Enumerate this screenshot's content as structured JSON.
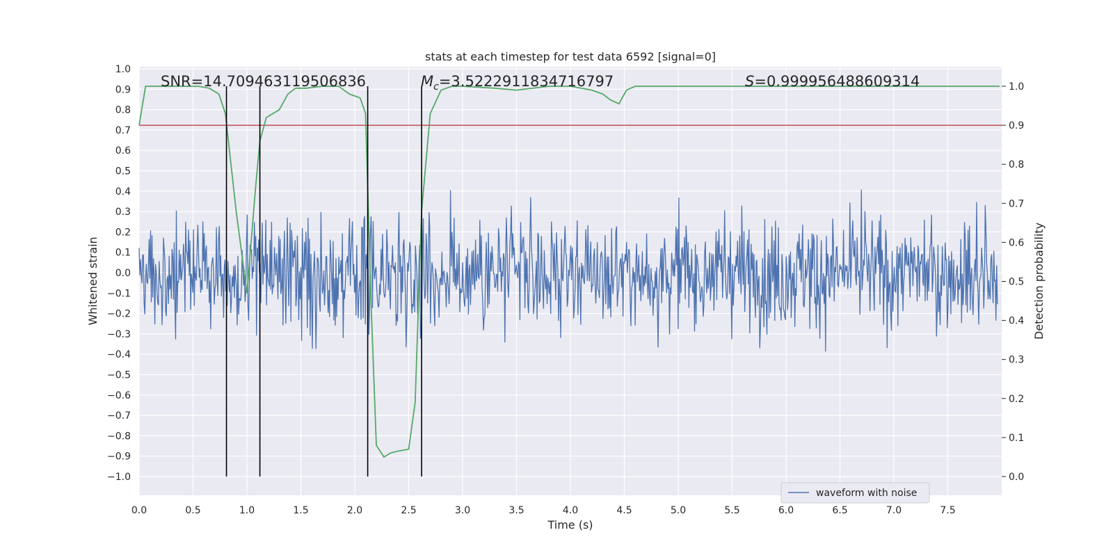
{
  "chart_data": {
    "type": "line",
    "title": "stats at each timestep for test data 6592 [signal=0]",
    "xlabel": "Time (s)",
    "ylabel": "Whitened strain",
    "y2label": "Detection probability",
    "xlim": [
      0.0,
      8.0
    ],
    "ylim": [
      -1.0,
      1.0
    ],
    "y2lim": [
      0.0,
      1.0
    ],
    "xticks": [
      "0.0",
      "0.5",
      "1.0",
      "1.5",
      "2.0",
      "2.5",
      "3.0",
      "3.5",
      "4.0",
      "4.5",
      "5.0",
      "5.5",
      "6.0",
      "6.5",
      "7.0",
      "7.5"
    ],
    "yticks": [
      "1.0",
      "0.9",
      "0.8",
      "0.7",
      "0.6",
      "0.5",
      "0.4",
      "0.3",
      "0.2",
      "0.1",
      "0.0",
      "−0.1",
      "−0.2",
      "−0.3",
      "−0.4",
      "−0.5",
      "−0.6",
      "−0.7",
      "−0.8",
      "−0.9",
      "−1.0"
    ],
    "y2ticks": [
      "1.0",
      "0.9",
      "0.8",
      "0.7",
      "0.6",
      "0.5",
      "0.4",
      "0.3",
      "0.2",
      "0.1",
      "0.0"
    ],
    "annotations": {
      "snr": "SNR=14.709463119506836",
      "mc_prefix": "M",
      "mc_sub": "c",
      "mc_value": "=3.5222911834716797",
      "s_prefix": "S",
      "s_value": "=0.999956488609314"
    },
    "threshold": {
      "y2": 0.9,
      "color": "#c44e52"
    },
    "vertical_lines_x": [
      0.81,
      1.12,
      2.12,
      2.62
    ],
    "legend": {
      "label": "waveform with noise",
      "placement": "lower-right"
    },
    "waveform": {
      "name": "waveform with noise",
      "color": "#4c72b0",
      "typical_amplitude": 0.42,
      "samples": 1200
    },
    "probability": {
      "color": "#55a868",
      "x": [
        0.0,
        0.06,
        0.2,
        0.4,
        0.55,
        0.65,
        0.74,
        0.8,
        0.9,
        1.0,
        1.08,
        1.12,
        1.18,
        1.3,
        1.38,
        1.45,
        1.55,
        1.7,
        1.85,
        1.95,
        2.05,
        2.1,
        2.15,
        2.2,
        2.27,
        2.33,
        2.4,
        2.5,
        2.56,
        2.62,
        2.7,
        2.8,
        2.9,
        3.0,
        3.3,
        3.5,
        3.8,
        4.0,
        4.2,
        4.3,
        4.37,
        4.45,
        4.52,
        4.6,
        4.8,
        5.0,
        5.3,
        5.6,
        6.0,
        6.5,
        7.0,
        7.5,
        8.0
      ],
      "y": [
        0.9,
        1.0,
        1.0,
        1.0,
        1.0,
        0.995,
        0.98,
        0.93,
        0.68,
        0.47,
        0.74,
        0.86,
        0.92,
        0.94,
        0.98,
        0.995,
        0.995,
        1.0,
        1.0,
        0.98,
        0.97,
        0.93,
        0.45,
        0.08,
        0.05,
        0.06,
        0.065,
        0.07,
        0.19,
        0.68,
        0.93,
        0.99,
        1.0,
        1.0,
        0.995,
        0.99,
        1.0,
        1.0,
        0.99,
        0.98,
        0.965,
        0.955,
        0.99,
        1.0,
        1.0,
        1.0,
        1.0,
        1.0,
        1.0,
        1.0,
        1.0,
        1.0,
        1.0
      ]
    }
  }
}
